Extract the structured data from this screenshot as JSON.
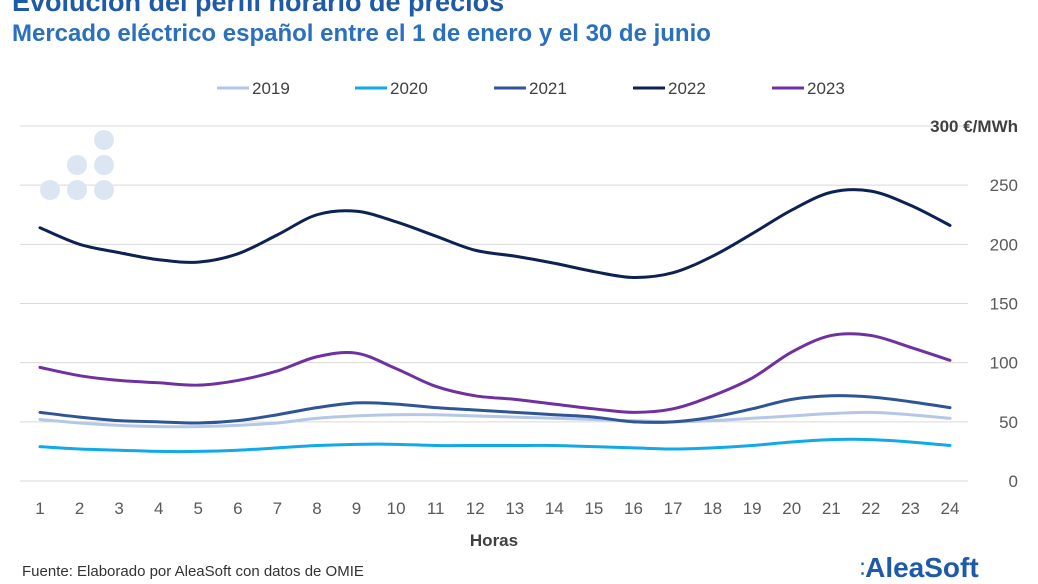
{
  "title": "Evolución del perfil horario de precios",
  "subtitle": "Mercado eléctrico español entre el 1 de enero y el 30 de junio",
  "source": "Fuente: Elaborado por AleaSoft con datos de OMIE",
  "brand": "AleaSoft",
  "chart_data": {
    "type": "line",
    "xlabel": "Horas",
    "ylabel": "",
    "y_unit_label": "300 €/MWh",
    "ylim": [
      0,
      300
    ],
    "yticks": [
      0,
      50,
      100,
      150,
      200,
      250
    ],
    "grid": true,
    "legend_position": "top",
    "x": [
      1,
      2,
      3,
      4,
      5,
      6,
      7,
      8,
      9,
      10,
      11,
      12,
      13,
      14,
      15,
      16,
      17,
      18,
      19,
      20,
      21,
      22,
      23,
      24
    ],
    "series": [
      {
        "name": "2019",
        "color": "#b4c7e7",
        "values": [
          52,
          49,
          47,
          46,
          46,
          47,
          49,
          53,
          55,
          56,
          56,
          55,
          54,
          53,
          52,
          51,
          50,
          51,
          53,
          55,
          57,
          58,
          56,
          53
        ]
      },
      {
        "name": "2020",
        "color": "#11a9e8",
        "values": [
          29,
          27,
          26,
          25,
          25,
          26,
          28,
          30,
          31,
          31,
          30,
          30,
          30,
          30,
          29,
          28,
          27,
          28,
          30,
          33,
          35,
          35,
          33,
          30
        ]
      },
      {
        "name": "2021",
        "color": "#2f5597",
        "values": [
          58,
          54,
          51,
          50,
          49,
          51,
          56,
          62,
          66,
          65,
          62,
          60,
          58,
          56,
          54,
          50,
          50,
          54,
          61,
          69,
          72,
          71,
          67,
          62
        ]
      },
      {
        "name": "2022",
        "color": "#0d2152",
        "values": [
          214,
          200,
          193,
          187,
          185,
          192,
          208,
          225,
          228,
          219,
          207,
          195,
          190,
          184,
          177,
          172,
          176,
          190,
          209,
          229,
          244,
          245,
          233,
          216
        ]
      },
      {
        "name": "2023",
        "color": "#7030a0",
        "values": [
          96,
          89,
          85,
          83,
          81,
          85,
          93,
          105,
          108,
          95,
          80,
          72,
          69,
          65,
          61,
          58,
          61,
          72,
          87,
          109,
          123,
          123,
          113,
          102
        ]
      }
    ]
  }
}
